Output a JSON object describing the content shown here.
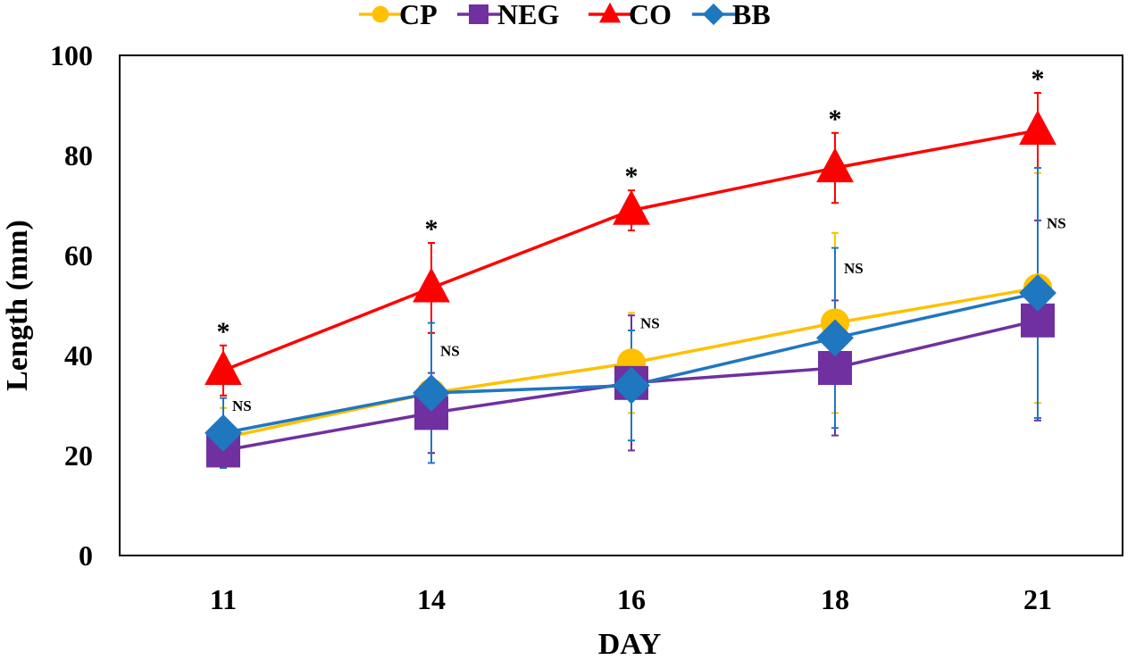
{
  "chart_data": {
    "type": "line",
    "title": "",
    "xlabel": "DAY",
    "ylabel": "Length (mm)",
    "categories": [
      "11",
      "14",
      "16",
      "18",
      "21"
    ],
    "ylim": [
      0,
      100
    ],
    "yticks": [
      "0",
      "20",
      "40",
      "60",
      "80",
      "100"
    ],
    "grid": false,
    "legend_position": "top",
    "series": [
      {
        "name": "CP",
        "color": "#FFC000",
        "marker": "circle",
        "values": [
          23.5,
          32.5,
          38.5,
          46.5,
          53.5
        ],
        "error": [
          6,
          12,
          10,
          18,
          23
        ]
      },
      {
        "name": "NEG",
        "color": "#7030A0",
        "marker": "square",
        "values": [
          21,
          28.5,
          34.5,
          37.5,
          47
        ],
        "error": [
          3.5,
          8,
          13.5,
          13.5,
          20
        ]
      },
      {
        "name": "CO",
        "color": "#FF0000",
        "marker": "triangle",
        "values": [
          37,
          53.5,
          69,
          77.5,
          85
        ],
        "error": [
          5,
          9,
          4,
          7,
          7.5
        ]
      },
      {
        "name": "BB",
        "color": "#1F77C0",
        "marker": "diamond",
        "values": [
          24.5,
          32.5,
          34,
          43.5,
          52.5
        ],
        "error": [
          7,
          14,
          11,
          18,
          25
        ]
      }
    ],
    "annotations": {
      "significance": [
        "*",
        "*",
        "*",
        "*",
        "*"
      ],
      "ns_labels": [
        "NS",
        "NS",
        "NS",
        "NS",
        "NS"
      ]
    }
  }
}
